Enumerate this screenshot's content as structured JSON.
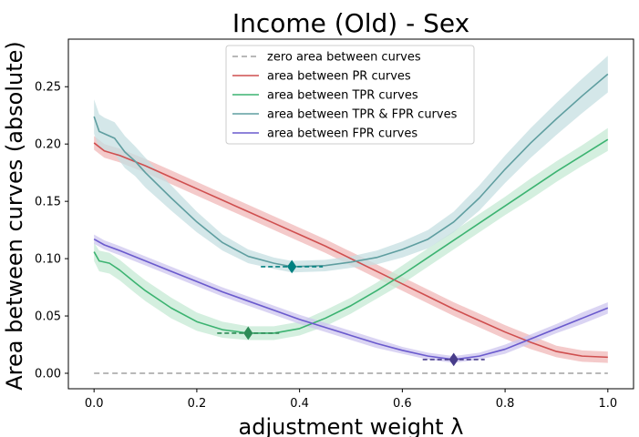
{
  "chart_data": {
    "type": "line",
    "title": "Income (Old) - Sex",
    "xlabel": "adjustment weight λ",
    "ylabel": "Area between curves (absolute)",
    "xlim": [
      -0.05,
      1.05
    ],
    "ylim": [
      -0.0135,
      0.2915
    ],
    "xticks": [
      0.0,
      0.2,
      0.4,
      0.6,
      0.8,
      1.0
    ],
    "xtick_labels": [
      "0.0",
      "0.2",
      "0.4",
      "0.6",
      "0.8",
      "1.0"
    ],
    "yticks": [
      0.0,
      0.05,
      0.1,
      0.15,
      0.2,
      0.25
    ],
    "ytick_labels": [
      "0.00",
      "0.05",
      "0.10",
      "0.15",
      "0.20",
      "0.25"
    ],
    "grid": false,
    "legend_position": "top-center",
    "series": [
      {
        "name": "zero area between curves",
        "color": "#a0a0a0",
        "dashed": true,
        "x": [
          0.0,
          1.0
        ],
        "y": [
          0.0,
          0.0
        ]
      },
      {
        "name": "area between PR curves",
        "color": "#cf4f4f",
        "band_color": "#f0b8b8",
        "x": [
          0.0,
          0.02,
          0.05,
          0.1,
          0.15,
          0.2,
          0.25,
          0.3,
          0.35,
          0.4,
          0.45,
          0.5,
          0.55,
          0.6,
          0.65,
          0.7,
          0.75,
          0.8,
          0.85,
          0.9,
          0.95,
          1.0
        ],
        "y": [
          0.201,
          0.194,
          0.19,
          0.181,
          0.171,
          0.161,
          0.151,
          0.141,
          0.131,
          0.121,
          0.111,
          0.1,
          0.089,
          0.078,
          0.067,
          0.056,
          0.046,
          0.036,
          0.027,
          0.019,
          0.015,
          0.014
        ],
        "band": [
          0.006,
          0.006,
          0.006,
          0.006,
          0.006,
          0.006,
          0.006,
          0.006,
          0.006,
          0.006,
          0.006,
          0.006,
          0.006,
          0.006,
          0.006,
          0.006,
          0.006,
          0.006,
          0.006,
          0.005,
          0.005,
          0.005
        ]
      },
      {
        "name": "area between TPR curves",
        "color": "#3cb371",
        "band_color": "#c6ead4",
        "marker": {
          "x": 0.3,
          "y": 0.035
        },
        "x": [
          0.0,
          0.01,
          0.03,
          0.05,
          0.08,
          0.1,
          0.15,
          0.2,
          0.25,
          0.3,
          0.35,
          0.4,
          0.45,
          0.5,
          0.55,
          0.6,
          0.65,
          0.7,
          0.75,
          0.8,
          0.85,
          0.9,
          0.95,
          1.0
        ],
        "y": [
          0.106,
          0.098,
          0.096,
          0.09,
          0.079,
          0.072,
          0.057,
          0.045,
          0.038,
          0.035,
          0.035,
          0.039,
          0.048,
          0.059,
          0.072,
          0.086,
          0.101,
          0.116,
          0.131,
          0.146,
          0.161,
          0.176,
          0.19,
          0.204
        ],
        "band": [
          0.008,
          0.009,
          0.009,
          0.009,
          0.009,
          0.009,
          0.009,
          0.008,
          0.007,
          0.006,
          0.006,
          0.006,
          0.007,
          0.007,
          0.007,
          0.008,
          0.008,
          0.008,
          0.008,
          0.008,
          0.009,
          0.009,
          0.009,
          0.01
        ]
      },
      {
        "name": "area between TPR & FPR curves",
        "color": "#5f9ea0",
        "band_color": "#c5dfe1",
        "marker": {
          "x": 0.385,
          "y": 0.093
        },
        "x": [
          0.0,
          0.01,
          0.02,
          0.04,
          0.06,
          0.08,
          0.1,
          0.15,
          0.2,
          0.25,
          0.3,
          0.35,
          0.385,
          0.45,
          0.5,
          0.55,
          0.6,
          0.65,
          0.7,
          0.75,
          0.8,
          0.85,
          0.9,
          0.95,
          1.0
        ],
        "y": [
          0.224,
          0.211,
          0.209,
          0.205,
          0.193,
          0.185,
          0.175,
          0.153,
          0.132,
          0.114,
          0.102,
          0.096,
          0.093,
          0.094,
          0.097,
          0.101,
          0.108,
          0.117,
          0.132,
          0.153,
          0.178,
          0.201,
          0.222,
          0.242,
          0.261
        ],
        "band": [
          0.015,
          0.015,
          0.014,
          0.014,
          0.014,
          0.013,
          0.013,
          0.011,
          0.009,
          0.007,
          0.006,
          0.005,
          0.005,
          0.005,
          0.005,
          0.006,
          0.007,
          0.008,
          0.009,
          0.011,
          0.012,
          0.013,
          0.014,
          0.015,
          0.016
        ]
      },
      {
        "name": "area between FPR curves",
        "color": "#6a5acd",
        "band_color": "#cdc6ef",
        "marker": {
          "x": 0.7,
          "y": 0.012
        },
        "x": [
          0.0,
          0.02,
          0.05,
          0.1,
          0.15,
          0.2,
          0.25,
          0.3,
          0.35,
          0.4,
          0.45,
          0.5,
          0.55,
          0.6,
          0.65,
          0.7,
          0.75,
          0.8,
          0.85,
          0.9,
          0.95,
          1.0
        ],
        "y": [
          0.117,
          0.112,
          0.107,
          0.098,
          0.089,
          0.08,
          0.071,
          0.063,
          0.055,
          0.047,
          0.04,
          0.033,
          0.026,
          0.02,
          0.015,
          0.012,
          0.015,
          0.021,
          0.03,
          0.039,
          0.048,
          0.057
        ],
        "band": [
          0.004,
          0.004,
          0.004,
          0.004,
          0.004,
          0.004,
          0.004,
          0.004,
          0.004,
          0.004,
          0.004,
          0.004,
          0.004,
          0.003,
          0.003,
          0.003,
          0.003,
          0.004,
          0.004,
          0.004,
          0.005,
          0.005
        ]
      }
    ]
  },
  "legend": {
    "items": [
      {
        "label": "zero area between curves"
      },
      {
        "label": "area between PR curves"
      },
      {
        "label": "area between TPR curves"
      },
      {
        "label": "area between TPR & FPR curves"
      },
      {
        "label": "area between FPR curves"
      }
    ]
  }
}
